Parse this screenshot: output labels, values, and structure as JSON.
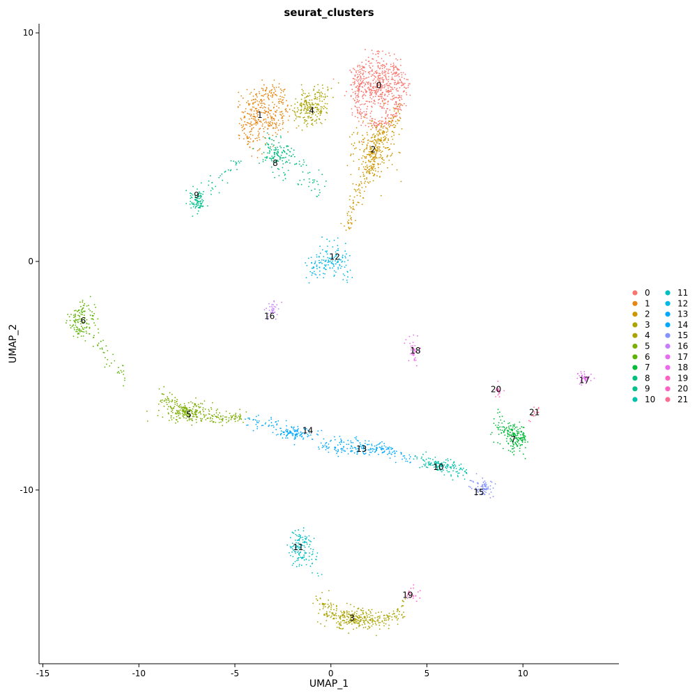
{
  "chart_data": {
    "type": "scatter",
    "title": "seurat_clusters",
    "xlabel": "UMAP_1",
    "ylabel": "UMAP_2",
    "xlim": [
      -15.2,
      15.0
    ],
    "ylim": [
      -17.6,
      10.4
    ],
    "x_ticks": [
      -15,
      -10,
      -5,
      0,
      5,
      10
    ],
    "y_ticks": [
      10,
      0,
      -10
    ],
    "grid": false,
    "legend_position": "right",
    "clusters": [
      {
        "id": "0",
        "label": "0",
        "color": "#F8766D",
        "centroid": [
          2.5,
          7.7
        ],
        "spread": [
          1.3,
          1.3
        ],
        "n": 700,
        "path": [
          [
            2.5,
            9.2
          ],
          [
            1.5,
            8.4
          ],
          [
            1.3,
            7.3
          ],
          [
            1.6,
            6.2
          ],
          [
            2.6,
            6.0
          ],
          [
            3.4,
            6.6
          ],
          [
            3.8,
            7.6
          ],
          [
            3.3,
            8.7
          ]
        ]
      },
      {
        "id": "1",
        "label": "1",
        "color": "#E68613",
        "centroid": [
          -3.6,
          6.4
        ],
        "spread": [
          1.3,
          1.2
        ],
        "n": 380,
        "path": [
          [
            -3.8,
            4.8
          ],
          [
            -4.4,
            5.6
          ],
          [
            -4.4,
            6.6
          ],
          [
            -3.7,
            7.3
          ],
          [
            -2.8,
            7.6
          ],
          [
            -2.4,
            6.8
          ],
          [
            -2.8,
            5.7
          ]
        ]
      },
      {
        "id": "2",
        "label": "2",
        "color": "#CD9600",
        "centroid": [
          2.3,
          4.9
        ],
        "spread": [
          1.2,
          1.4
        ],
        "n": 430,
        "path": [
          [
            3.6,
            6.6
          ],
          [
            3.0,
            5.8
          ],
          [
            2.2,
            5.3
          ],
          [
            2.1,
            4.2
          ],
          [
            1.6,
            3.4
          ],
          [
            1.1,
            2.4
          ],
          [
            1.0,
            1.4
          ]
        ]
      },
      {
        "id": "3",
        "label": "3",
        "color": "#ABA300",
        "centroid": [
          1.2,
          -15.6
        ],
        "spread": [
          1.5,
          0.5
        ],
        "n": 360,
        "path": [
          [
            -0.7,
            -14.6
          ],
          [
            -0.2,
            -15.2
          ],
          [
            0.7,
            -15.6
          ],
          [
            1.7,
            -15.8
          ],
          [
            2.6,
            -15.8
          ],
          [
            3.3,
            -15.5
          ],
          [
            3.8,
            -15.0
          ]
        ]
      },
      {
        "id": "4",
        "label": "4",
        "color": "#ABA300",
        "centroid": [
          -1.1,
          6.7
        ],
        "spread": [
          1.0,
          0.8
        ],
        "n": 220,
        "path": [
          [
            -1.9,
            6.2
          ],
          [
            -1.4,
            7.1
          ],
          [
            -0.8,
            7.3
          ],
          [
            -0.2,
            7.6
          ],
          [
            -0.5,
            6.6
          ],
          [
            -1.3,
            6.0
          ]
        ]
      },
      {
        "id": "5",
        "label": "5",
        "color": "#7CAE00",
        "centroid": [
          -7.5,
          -6.6
        ],
        "spread": [
          1.5,
          0.5
        ],
        "n": 320,
        "path": [
          [
            -8.9,
            -5.8
          ],
          [
            -8.2,
            -6.3
          ],
          [
            -7.3,
            -6.6
          ],
          [
            -6.6,
            -6.8
          ],
          [
            -5.8,
            -6.9
          ],
          [
            -5.0,
            -6.8
          ],
          [
            -4.6,
            -6.9
          ]
        ]
      },
      {
        "id": "6",
        "label": "6",
        "color": "#5BB300",
        "centroid": [
          -13.0,
          -2.7
        ],
        "spread": [
          0.8,
          0.8
        ],
        "n": 170,
        "path": [
          [
            -13.4,
            -2.6
          ],
          [
            -13.1,
            -1.8
          ],
          [
            -12.6,
            -2.3
          ],
          [
            -12.3,
            -3.3
          ],
          [
            -11.8,
            -4.1
          ],
          [
            -11.2,
            -4.6
          ],
          [
            -10.8,
            -5.0
          ]
        ]
      },
      {
        "id": "7",
        "label": "7",
        "color": "#00BA38",
        "centroid": [
          9.6,
          -7.7
        ],
        "spread": [
          0.7,
          0.6
        ],
        "n": 200,
        "path": [
          [
            8.8,
            -7.4
          ],
          [
            9.3,
            -7.3
          ],
          [
            9.8,
            -7.6
          ],
          [
            10.1,
            -7.9
          ],
          [
            9.6,
            -8.2
          ],
          [
            8.7,
            -6.5
          ],
          [
            8.5,
            -8.0
          ]
        ]
      },
      {
        "id": "8",
        "label": "8",
        "color": "#00BF7D",
        "centroid": [
          -2.8,
          4.6
        ],
        "spread": [
          0.8,
          0.7
        ],
        "n": 170,
        "path": [
          [
            -3.6,
            5.1
          ],
          [
            -2.8,
            5.4
          ],
          [
            -2.2,
            4.9
          ],
          [
            -1.6,
            4.3
          ],
          [
            -1.0,
            3.6
          ],
          [
            -0.4,
            3.0
          ],
          [
            -2.9,
            4.0
          ]
        ]
      },
      {
        "id": "9",
        "label": "9",
        "color": "#00C08B",
        "centroid": [
          -6.9,
          2.6
        ],
        "spread": [
          0.4,
          0.5
        ],
        "n": 120,
        "path": [
          [
            -7.0,
            2.1
          ],
          [
            -7.2,
            2.8
          ],
          [
            -6.7,
            3.1
          ],
          [
            -6.1,
            3.5
          ],
          [
            -5.4,
            3.9
          ],
          [
            -4.8,
            4.4
          ]
        ]
      },
      {
        "id": "10",
        "label": "10",
        "color": "#00C1AA",
        "centroid": [
          5.6,
          -8.9
        ],
        "spread": [
          1.0,
          0.3
        ],
        "n": 150,
        "path": [
          [
            4.5,
            -8.6
          ],
          [
            5.2,
            -8.8
          ],
          [
            5.9,
            -8.9
          ],
          [
            6.6,
            -9.1
          ],
          [
            7.0,
            -9.2
          ]
        ]
      },
      {
        "id": "11",
        "label": "11",
        "color": "#00BFC4",
        "centroid": [
          -1.6,
          -12.6
        ],
        "spread": [
          0.5,
          0.8
        ],
        "n": 140,
        "path": [
          [
            -1.9,
            -13.3
          ],
          [
            -2.0,
            -12.5
          ],
          [
            -1.8,
            -11.9
          ],
          [
            -1.3,
            -12.0
          ],
          [
            -1.1,
            -12.6
          ],
          [
            -0.9,
            -13.1
          ],
          [
            -0.8,
            -13.8
          ]
        ]
      },
      {
        "id": "12",
        "label": "12",
        "color": "#00B8E7",
        "centroid": [
          0.1,
          0.0
        ],
        "spread": [
          0.8,
          0.6
        ],
        "n": 150,
        "path": [
          [
            -1.1,
            0.0
          ],
          [
            -0.9,
            -0.5
          ],
          [
            -0.6,
            -0.1
          ],
          [
            -0.3,
            0.5
          ],
          [
            0.2,
            0.9
          ],
          [
            0.8,
            0.5
          ],
          [
            0.9,
            -0.5
          ],
          [
            0.3,
            -0.6
          ]
        ]
      },
      {
        "id": "13",
        "label": "13",
        "color": "#00A9FF",
        "centroid": [
          1.8,
          -8.2
        ],
        "spread": [
          2.0,
          0.3
        ],
        "n": 200,
        "path": [
          [
            -0.7,
            -8.1
          ],
          [
            0.2,
            -8.0
          ],
          [
            1.2,
            -8.0
          ],
          [
            2.4,
            -8.2
          ],
          [
            3.4,
            -8.4
          ],
          [
            4.4,
            -8.6
          ]
        ]
      },
      {
        "id": "14",
        "label": "14",
        "color": "#00A9FF",
        "centroid": [
          -1.8,
          -7.5
        ],
        "spread": [
          1.2,
          0.3
        ],
        "n": 150,
        "path": [
          [
            -4.5,
            -7.0
          ],
          [
            -3.6,
            -7.1
          ],
          [
            -2.8,
            -7.2
          ],
          [
            -2.1,
            -7.4
          ],
          [
            -1.4,
            -7.6
          ],
          [
            -1.0,
            -7.9
          ]
        ]
      },
      {
        "id": "15",
        "label": "15",
        "color": "#8494FF",
        "centroid": [
          8.0,
          -9.9
        ],
        "spread": [
          0.5,
          0.4
        ],
        "n": 80,
        "path": [
          [
            7.2,
            -9.4
          ],
          [
            7.6,
            -9.7
          ],
          [
            8.0,
            -10.0
          ],
          [
            8.3,
            -10.2
          ],
          [
            8.5,
            -10.3
          ]
        ]
      },
      {
        "id": "16",
        "label": "16",
        "color": "#C77CFF",
        "centroid": [
          -3.0,
          -2.1
        ],
        "spread": [
          0.2,
          0.4
        ],
        "n": 35,
        "path": [
          [
            -3.3,
            -2.6
          ],
          [
            -3.1,
            -2.2
          ],
          [
            -2.9,
            -1.8
          ],
          [
            -2.6,
            -1.5
          ]
        ]
      },
      {
        "id": "17",
        "label": "17",
        "color": "#E76BF3",
        "centroid": [
          13.2,
          -5.1
        ],
        "spread": [
          0.3,
          0.2
        ],
        "n": 45,
        "path": [
          [
            12.9,
            -5.2
          ],
          [
            13.1,
            -5.0
          ],
          [
            13.3,
            -5.1
          ],
          [
            13.5,
            -5.3
          ]
        ]
      },
      {
        "id": "18",
        "label": "18",
        "color": "#ED68ED",
        "centroid": [
          4.3,
          -3.9
        ],
        "spread": [
          0.1,
          0.4
        ],
        "n": 40,
        "path": [
          [
            4.1,
            -3.4
          ],
          [
            4.2,
            -3.8
          ],
          [
            4.4,
            -4.2
          ],
          [
            4.5,
            -4.5
          ]
        ]
      },
      {
        "id": "19",
        "label": "19",
        "color": "#FF61C3",
        "centroid": [
          4.2,
          -14.6
        ],
        "spread": [
          0.3,
          0.2
        ],
        "n": 25,
        "path": [
          [
            4.0,
            -14.3
          ],
          [
            4.2,
            -14.6
          ],
          [
            4.5,
            -14.7
          ],
          [
            4.6,
            -14.6
          ]
        ]
      },
      {
        "id": "20",
        "label": "20",
        "color": "#FF61C3",
        "centroid": [
          8.7,
          -5.6
        ],
        "spread": [
          0.1,
          0.2
        ],
        "n": 20,
        "path": [
          [
            8.6,
            -5.4
          ],
          [
            8.7,
            -5.6
          ],
          [
            8.8,
            -5.9
          ]
        ]
      },
      {
        "id": "21",
        "label": "21",
        "color": "#FF6C91",
        "centroid": [
          10.7,
          -6.6
        ],
        "spread": [
          0.3,
          0.2
        ],
        "n": 15,
        "path": [
          [
            10.3,
            -6.9
          ],
          [
            10.7,
            -6.6
          ],
          [
            11.2,
            -6.4
          ],
          [
            11.7,
            -6.2
          ]
        ]
      }
    ],
    "label_positions": {
      "0": [
        2.5,
        7.7
      ],
      "1": [
        -3.7,
        6.4
      ],
      "2": [
        2.2,
        4.9
      ],
      "3": [
        1.1,
        -15.6
      ],
      "4": [
        -1.0,
        6.6
      ],
      "5": [
        -7.4,
        -6.7
      ],
      "6": [
        -12.9,
        -2.6
      ],
      "7": [
        9.5,
        -7.8
      ],
      "8": [
        -2.9,
        4.3
      ],
      "9": [
        -7.0,
        2.9
      ],
      "10": [
        5.6,
        -9.0
      ],
      "11": [
        -1.7,
        -12.5
      ],
      "12": [
        0.2,
        0.2
      ],
      "13": [
        1.6,
        -8.2
      ],
      "14": [
        -1.2,
        -7.4
      ],
      "15": [
        7.7,
        -10.1
      ],
      "16": [
        -3.2,
        -2.4
      ],
      "17": [
        13.2,
        -5.2
      ],
      "18": [
        4.4,
        -3.9
      ],
      "19": [
        4.0,
        -14.6
      ],
      "20": [
        8.6,
        -5.6
      ],
      "21": [
        10.6,
        -6.6
      ]
    }
  }
}
